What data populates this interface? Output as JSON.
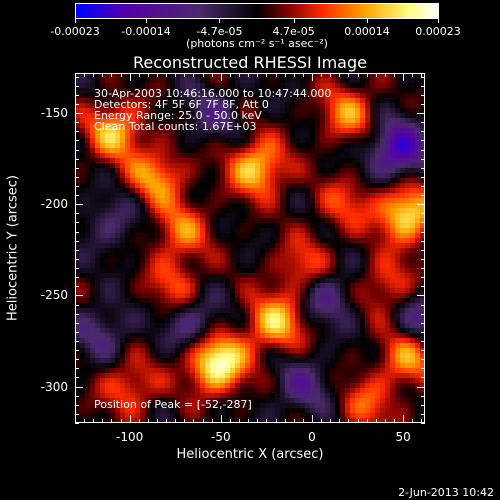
{
  "colorbar": {
    "tick_labels": [
      "-0.00023",
      "-0.00014",
      "-4.7e-05",
      "4.7e-05",
      "0.00014",
      "0.00023"
    ],
    "unit_label": "(photons cm⁻² s⁻¹ asec⁻²)",
    "range": [
      -0.00023,
      0.00023
    ],
    "colors": [
      "#0000ff",
      "#5500a8",
      "#4a2a6b",
      "#000000",
      "#7a0000",
      "#ff2a00",
      "#ffa500",
      "#ffff80",
      "#ffffff"
    ]
  },
  "plot": {
    "title": "Reconstructed RHESSI Image",
    "xlabel": "Heliocentric X (arcsec)",
    "ylabel": "Heliocentric Y (arcsec)",
    "x_tick_labels": [
      "-100",
      "-50",
      "0",
      "50"
    ],
    "y_tick_labels": [
      "-150",
      "-200",
      "-250",
      "-300"
    ],
    "info_lines": [
      "30-Apr-2003 10:46:16.000 to 10:47:44.000",
      "Detectors: 4F 5F 6F 7F 8F, Att 0",
      "Energy Range: 25.0 - 50.0 keV",
      "Clean    Total counts: 1.67E+03"
    ],
    "peak_text": "Position of Peak = [-52,-287]"
  },
  "chart_data": {
    "type": "heatmap",
    "title": "Reconstructed RHESSI Image",
    "xlabel": "Heliocentric X (arcsec)",
    "ylabel": "Heliocentric Y (arcsec)",
    "xlim": [
      -130,
      62
    ],
    "ylim": [
      -320,
      -128
    ],
    "x_ticks": [
      -100,
      -50,
      0,
      50
    ],
    "y_ticks": [
      -150,
      -200,
      -250,
      -300
    ],
    "colorbar_range": [
      -0.00023,
      0.00023
    ],
    "colorbar_ticks": [
      -0.00023,
      -0.00014,
      -4.7e-05,
      4.7e-05,
      0.00014,
      0.00023
    ],
    "peak_position": [
      -52,
      -287
    ],
    "bright_sources": [
      {
        "x": -52,
        "y": -287,
        "level": 0.00023
      },
      {
        "x": -20,
        "y": -265,
        "level": 0.00016
      },
      {
        "x": -30,
        "y": -180,
        "level": 0.00017
      },
      {
        "x": 52,
        "y": -205,
        "level": 0.00019
      },
      {
        "x": 52,
        "y": -285,
        "level": 0.00012
      },
      {
        "x": -108,
        "y": -160,
        "level": 0.00015
      },
      {
        "x": -85,
        "y": -185,
        "level": 0.00013
      },
      {
        "x": -72,
        "y": -215,
        "level": 0.00011
      },
      {
        "x": 20,
        "y": -150,
        "level": 0.00012
      },
      {
        "x": 42,
        "y": -245,
        "level": 0.0001
      },
      {
        "x": -100,
        "y": -300,
        "level": 0.0001
      },
      {
        "x": -75,
        "y": -245,
        "level": 9e-05
      },
      {
        "x": 18,
        "y": -200,
        "level": 8e-05
      },
      {
        "x": -5,
        "y": -235,
        "level": 0.0001
      },
      {
        "x": 30,
        "y": -310,
        "level": 9e-05
      }
    ],
    "dark_sources": [
      {
        "x": 47,
        "y": -170,
        "level": -0.00018
      },
      {
        "x": 8,
        "y": -250,
        "level": -0.0001
      },
      {
        "x": -65,
        "y": -265,
        "level": -0.0001
      },
      {
        "x": -115,
        "y": -270,
        "level": -8e-05
      },
      {
        "x": -5,
        "y": -300,
        "level": -9e-05
      },
      {
        "x": -110,
        "y": -210,
        "level": -7e-05
      },
      {
        "x": -55,
        "y": -150,
        "level": -7e-05
      },
      {
        "x": 60,
        "y": -260,
        "level": -9e-05
      }
    ]
  },
  "footer": {
    "date_stamp": "2-Jun-2013 10:42"
  }
}
